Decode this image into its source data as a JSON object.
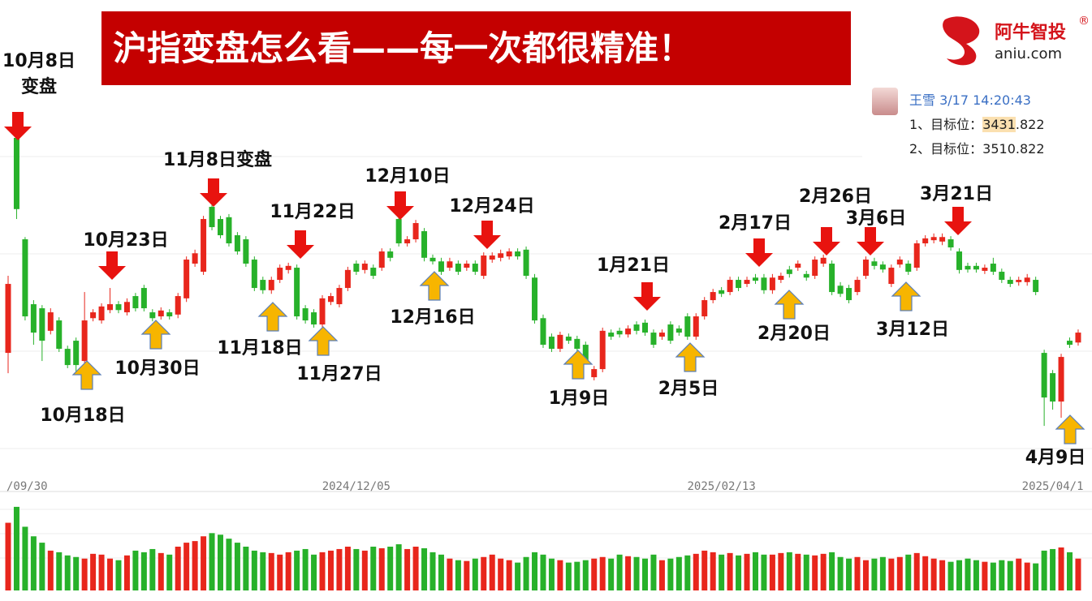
{
  "header": {
    "title": "沪指变盘怎么看——每一次都很精准！"
  },
  "logo": {
    "name": "阿牛智投",
    "mark": "®",
    "domain": "aniu.com"
  },
  "note": {
    "author": "王雪",
    "time": "3/17 14:20:43",
    "lines": [
      {
        "prefix": "1、目标位：",
        "highlight": "3431",
        "rest": ".822"
      },
      {
        "text": "2、目标位：3510.822"
      }
    ]
  },
  "chart_data": {
    "type": "candlestick",
    "up_color": "#e8261c",
    "down_color": "#27b12a",
    "ylim": [
      3000,
      3700
    ],
    "volume_ylim": [
      0,
      110
    ],
    "categories": [
      "/09/30",
      null,
      null,
      null,
      null,
      null,
      null,
      null,
      null,
      null,
      null,
      null,
      null,
      null,
      null,
      null,
      null,
      null,
      null,
      null,
      null,
      null,
      null,
      null,
      null,
      null,
      null,
      null,
      null,
      null,
      null,
      null,
      null,
      null,
      null,
      null,
      null,
      null,
      null,
      null,
      null,
      "2024/12/05",
      null,
      null,
      null,
      null,
      null,
      null,
      null,
      null,
      null,
      null,
      null,
      null,
      null,
      null,
      null,
      null,
      null,
      null,
      null,
      null,
      null,
      null,
      null,
      null,
      null,
      null,
      null,
      null,
      null,
      null,
      null,
      null,
      null,
      null,
      null,
      null,
      null,
      null,
      null,
      null,
      null,
      null,
      "2025/02/13",
      null,
      null,
      null,
      null,
      null,
      null,
      null,
      null,
      null,
      null,
      null,
      null,
      null,
      null,
      null,
      null,
      null,
      null,
      null,
      null,
      null,
      null,
      null,
      null,
      null,
      null,
      null,
      null,
      null,
      null,
      null,
      null,
      null,
      null,
      null,
      null,
      null,
      null,
      "2025/04/1",
      null,
      null,
      null
    ],
    "open": [
      3205,
      3682,
      3457,
      3313,
      3304,
      3254,
      3277,
      3214,
      3232,
      3187,
      3282,
      3277,
      3300,
      3313,
      3295,
      3331,
      3349,
      3295,
      3286,
      3295,
      3290,
      3326,
      3403,
      3385,
      3529,
      3502,
      3506,
      3466,
      3457,
      3412,
      3367,
      3344,
      3367,
      3389,
      3394,
      3304,
      3295,
      3268,
      3318,
      3313,
      3349,
      3403,
      3389,
      3394,
      3394,
      3430,
      3502,
      3448,
      3457,
      3475,
      3416,
      3408,
      3394,
      3403,
      3394,
      3403,
      3376,
      3412,
      3416,
      3419,
      3430,
      3434,
      3372,
      3282,
      3241,
      3214,
      3241,
      3236,
      3223,
      3151,
      3169,
      3250,
      3254,
      3246,
      3268,
      3272,
      3250,
      3241,
      3268,
      3259,
      3286,
      3241,
      3286,
      3322,
      3344,
      3340,
      3367,
      3358,
      3372,
      3372,
      3344,
      3367,
      3390,
      3394,
      3380,
      3376,
      3403,
      3403,
      3354,
      3349,
      3340,
      3376,
      3408,
      3401,
      3358,
      3401,
      3403,
      3394,
      3448,
      3455,
      3452,
      3457,
      3430,
      3398,
      3398,
      3387,
      3403,
      3385,
      3367,
      3362,
      3362,
      3367,
      3205,
      3160,
      3097,
      3232,
      3228
    ],
    "high": [
      3376,
      3691,
      3462,
      3322,
      3311,
      3304,
      3284,
      3221,
      3239,
      3340,
      3302,
      3315,
      3349,
      3320,
      3326,
      3338,
      3356,
      3302,
      3306,
      3302,
      3338,
      3419,
      3434,
      3509,
      3547,
      3509,
      3513,
      3473,
      3464,
      3419,
      3374,
      3374,
      3401,
      3405,
      3401,
      3311,
      3302,
      3333,
      3338,
      3356,
      3396,
      3410,
      3410,
      3401,
      3437,
      3437,
      3509,
      3464,
      3500,
      3482,
      3423,
      3416,
      3416,
      3410,
      3410,
      3410,
      3428,
      3428,
      3434,
      3437,
      3437,
      3441,
      3380,
      3290,
      3248,
      3252,
      3248,
      3243,
      3230,
      3176,
      3261,
      3257,
      3261,
      3266,
      3275,
      3279,
      3257,
      3257,
      3275,
      3266,
      3293,
      3293,
      3329,
      3347,
      3351,
      3374,
      3374,
      3374,
      3380,
      3380,
      3380,
      3383,
      3398,
      3410,
      3387,
      3419,
      3423,
      3410,
      3362,
      3356,
      3374,
      3419,
      3416,
      3408,
      3401,
      3419,
      3410,
      3455,
      3466,
      3470,
      3470,
      3464,
      3437,
      3405,
      3405,
      3401,
      3416,
      3392,
      3374,
      3374,
      3380,
      3374,
      3212,
      3167,
      3203,
      3239,
      3257
    ],
    "low": [
      3160,
      3502,
      3277,
      3223,
      3187,
      3246,
      3207,
      3171,
      3160,
      3178,
      3275,
      3270,
      3293,
      3293,
      3288,
      3297,
      3297,
      3275,
      3279,
      3279,
      3282,
      3318,
      3396,
      3378,
      3477,
      3459,
      3441,
      3423,
      3396,
      3342,
      3336,
      3336,
      3360,
      3381,
      3279,
      3270,
      3261,
      3261,
      3311,
      3306,
      3342,
      3378,
      3381,
      3369,
      3387,
      3408,
      3441,
      3441,
      3450,
      3408,
      3401,
      3378,
      3387,
      3378,
      3387,
      3378,
      3369,
      3405,
      3408,
      3412,
      3412,
      3369,
      3270,
      3216,
      3207,
      3207,
      3225,
      3207,
      3180,
      3144,
      3162,
      3234,
      3239,
      3239,
      3246,
      3243,
      3216,
      3234,
      3225,
      3243,
      3234,
      3234,
      3279,
      3315,
      3329,
      3333,
      3342,
      3351,
      3358,
      3336,
      3336,
      3360,
      3372,
      3387,
      3365,
      3369,
      3396,
      3333,
      3329,
      3315,
      3333,
      3369,
      3390,
      3383,
      3351,
      3394,
      3378,
      3387,
      3441,
      3448,
      3444,
      3432,
      3381,
      3383,
      3383,
      3380,
      3378,
      3360,
      3351,
      3354,
      3354,
      3333,
      3043,
      3079,
      3061,
      3216,
      3221
    ],
    "close": [
      3358,
      3524,
      3286,
      3250,
      3232,
      3295,
      3214,
      3178,
      3178,
      3277,
      3295,
      3308,
      3313,
      3300,
      3318,
      3304,
      3304,
      3282,
      3299,
      3286,
      3331,
      3412,
      3426,
      3502,
      3484,
      3466,
      3448,
      3430,
      3403,
      3349,
      3344,
      3367,
      3394,
      3398,
      3286,
      3277,
      3268,
      3326,
      3331,
      3349,
      3389,
      3385,
      3403,
      3376,
      3430,
      3416,
      3448,
      3457,
      3493,
      3416,
      3408,
      3385,
      3408,
      3385,
      3403,
      3385,
      3421,
      3421,
      3426,
      3430,
      3419,
      3376,
      3277,
      3223,
      3214,
      3245,
      3232,
      3214,
      3187,
      3169,
      3254,
      3241,
      3246,
      3259,
      3254,
      3250,
      3223,
      3250,
      3232,
      3250,
      3241,
      3286,
      3322,
      3340,
      3336,
      3367,
      3349,
      3367,
      3365,
      3344,
      3372,
      3376,
      3380,
      3403,
      3372,
      3412,
      3416,
      3340,
      3336,
      3322,
      3367,
      3412,
      3398,
      3390,
      3394,
      3412,
      3385,
      3448,
      3459,
      3462,
      3462,
      3439,
      3389,
      3390,
      3390,
      3394,
      3385,
      3367,
      3358,
      3367,
      3372,
      3340,
      3106,
      3097,
      3196,
      3223,
      3250
    ],
    "volume": [
      85,
      105,
      80,
      68,
      60,
      50,
      48,
      44,
      42,
      40,
      46,
      45,
      40,
      38,
      44,
      50,
      48,
      52,
      47,
      45,
      55,
      60,
      62,
      68,
      72,
      70,
      65,
      60,
      55,
      50,
      48,
      47,
      45,
      48,
      50,
      52,
      45,
      48,
      50,
      52,
      55,
      52,
      50,
      55,
      53,
      55,
      58,
      52,
      55,
      53,
      48,
      45,
      40,
      38,
      37,
      40,
      42,
      45,
      40,
      38,
      35,
      42,
      48,
      45,
      40,
      38,
      35,
      36,
      38,
      40,
      42,
      40,
      45,
      43,
      42,
      40,
      45,
      38,
      40,
      42,
      44,
      46,
      50,
      48,
      45,
      47,
      44,
      46,
      48,
      45,
      45,
      47,
      48,
      46,
      45,
      44,
      46,
      48,
      42,
      40,
      42,
      38,
      40,
      42,
      40,
      42,
      45,
      47,
      43,
      40,
      38,
      36,
      38,
      40,
      38,
      36,
      35,
      38,
      37,
      40,
      35,
      34,
      50,
      52,
      54,
      48,
      40
    ],
    "signals": [
      {
        "arrow": "down",
        "color": "#e8130f",
        "lines": [
          "10月8日",
          "变盘"
        ]
      },
      {
        "arrow": "down",
        "color": "#e8130f",
        "lines": [
          "10月23日"
        ]
      },
      {
        "arrow": "down",
        "color": "#e8130f",
        "lines": [
          "11月8日变盘"
        ]
      },
      {
        "arrow": "down",
        "color": "#e8130f",
        "lines": [
          "11月22日"
        ]
      },
      {
        "arrow": "down",
        "color": "#e8130f",
        "lines": [
          "12月10日"
        ]
      },
      {
        "arrow": "down",
        "color": "#e8130f",
        "lines": [
          "12月24日"
        ]
      },
      {
        "arrow": "down",
        "color": "#e8130f",
        "lines": [
          "1月21日"
        ]
      },
      {
        "arrow": "down",
        "color": "#e8130f",
        "lines": [
          "2月17日"
        ]
      },
      {
        "arrow": "down",
        "color": "#e8130f",
        "lines": [
          "2月26日"
        ]
      },
      {
        "arrow": "down",
        "color": "#e8130f",
        "lines": [
          "3月6日"
        ]
      },
      {
        "arrow": "down",
        "color": "#e8130f",
        "lines": [
          "3月21日"
        ]
      },
      {
        "arrow": "up",
        "color": "#f7b500",
        "lines": [
          "10月18日"
        ]
      },
      {
        "arrow": "up",
        "color": "#f7b500",
        "lines": [
          "10月30日"
        ]
      },
      {
        "arrow": "up",
        "color": "#f7b500",
        "lines": [
          "11月18日"
        ]
      },
      {
        "arrow": "up",
        "color": "#f7b500",
        "lines": [
          "11月27日"
        ]
      },
      {
        "arrow": "up",
        "color": "#f7b500",
        "lines": [
          "12月16日"
        ]
      },
      {
        "arrow": "up",
        "color": "#f7b500",
        "lines": [
          "1月9日"
        ]
      },
      {
        "arrow": "up",
        "color": "#f7b500",
        "lines": [
          "2月5日"
        ]
      },
      {
        "arrow": "up",
        "color": "#f7b500",
        "lines": [
          "2月20日"
        ]
      },
      {
        "arrow": "up",
        "color": "#f7b500",
        "lines": [
          "3月12日"
        ]
      },
      {
        "arrow": "up",
        "color": "#f7b500",
        "lines": [
          "4月9日"
        ]
      }
    ]
  }
}
